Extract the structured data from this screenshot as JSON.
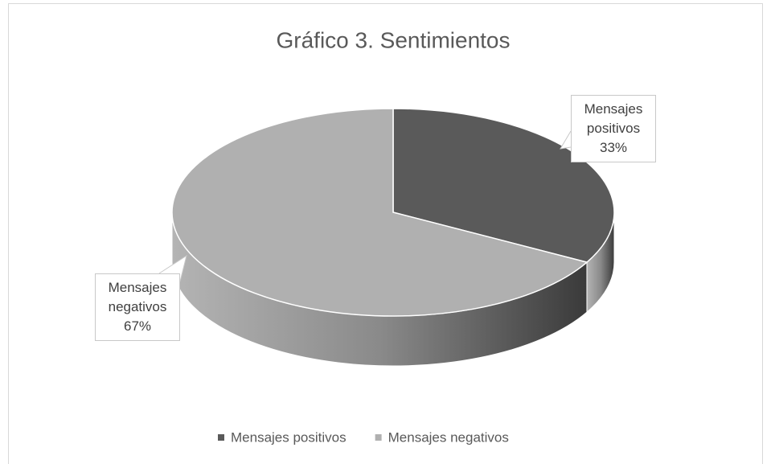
{
  "chart_data": {
    "type": "pie3d",
    "title": "Gráfico 3. Sentimientos",
    "categories": [
      "Mensajes positivos",
      "Mensajes negativos"
    ],
    "values": [
      33,
      67
    ],
    "value_labels": [
      "33%",
      "67%"
    ],
    "colors": [
      "#5a5a5a",
      "#b0b0b0"
    ],
    "legend": "bottom"
  }
}
